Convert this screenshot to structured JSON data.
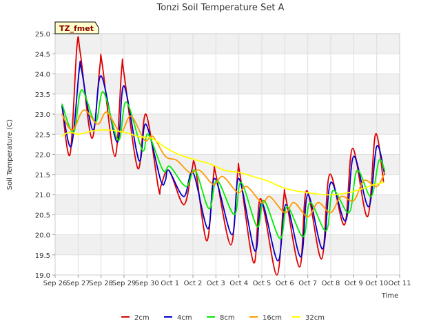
{
  "chart_data": {
    "type": "line",
    "title": "Tonzi Soil Temperature Set A",
    "xlabel": "Time",
    "ylabel": "Soil Temperature (C)",
    "badge": "TZ_fmet",
    "xlim": [
      0,
      15
    ],
    "ylim": [
      19.0,
      25.0
    ],
    "x_ticks": [
      0,
      1,
      2,
      3,
      4,
      5,
      6,
      7,
      8,
      9,
      10,
      11,
      12,
      13,
      14,
      15
    ],
    "x_tick_labels": [
      "Sep 26",
      "Sep 27",
      "Sep 28",
      "Sep 29",
      "Sep 30",
      "Oct 1",
      "Oct 2",
      "Oct 3",
      "Oct 4",
      "Oct 5",
      "Oct 6",
      "Oct 7",
      "Oct 8",
      "Oct 9",
      "Oct 10",
      "Oct 11"
    ],
    "y_ticks": [
      19.0,
      19.5,
      20.0,
      20.5,
      21.0,
      21.5,
      22.0,
      22.5,
      23.0,
      23.5,
      24.0,
      24.5,
      25.0
    ],
    "y_tick_labels": [
      "19.0",
      "19.5",
      "20.0",
      "20.5",
      "21.0",
      "21.5",
      "22.0",
      "22.5",
      "23.0",
      "23.5",
      "24.0",
      "24.5",
      "25.0"
    ],
    "grid": true,
    "legend_position": "bottom",
    "colors": {
      "background_band": "#f0f0f0",
      "grid": "#dddddd",
      "badge_fill": "#ffffcc",
      "badge_text": "#8b0000"
    },
    "series": [
      {
        "name": "2cm",
        "color": "#dd0000",
        "points": [
          [
            0.3,
            23.2
          ],
          [
            0.65,
            22.0
          ],
          [
            0.95,
            24.7
          ],
          [
            1.1,
            24.5
          ],
          [
            1.6,
            22.4
          ],
          [
            1.95,
            24.2
          ],
          [
            2.05,
            24.25
          ],
          [
            2.6,
            21.95
          ],
          [
            2.9,
            24.15
          ],
          [
            3.0,
            24.0
          ],
          [
            3.6,
            21.65
          ],
          [
            3.95,
            23.0
          ],
          [
            4.5,
            21.15
          ],
          [
            4.6,
            21.2
          ],
          [
            4.95,
            21.6
          ],
          [
            5.6,
            20.75
          ],
          [
            5.95,
            21.6
          ],
          [
            6.1,
            21.7
          ],
          [
            6.6,
            19.85
          ],
          [
            6.9,
            21.5
          ],
          [
            7.0,
            21.5
          ],
          [
            7.65,
            19.75
          ],
          [
            7.95,
            21.55
          ],
          [
            8.05,
            21.5
          ],
          [
            8.65,
            19.3
          ],
          [
            8.95,
            20.9
          ],
          [
            9.65,
            19.0
          ],
          [
            9.95,
            20.9
          ],
          [
            10.05,
            20.9
          ],
          [
            10.65,
            19.2
          ],
          [
            10.95,
            21.1
          ],
          [
            11.6,
            19.4
          ],
          [
            11.95,
            21.5
          ],
          [
            12.6,
            20.25
          ],
          [
            12.95,
            22.15
          ],
          [
            13.6,
            20.45
          ],
          [
            13.95,
            22.5
          ],
          [
            14.3,
            21.3
          ]
        ]
      },
      {
        "name": "4cm",
        "color": "#0000cc",
        "points": [
          [
            0.3,
            23.2
          ],
          [
            0.7,
            22.2
          ],
          [
            1.05,
            24.1
          ],
          [
            1.15,
            24.1
          ],
          [
            1.65,
            22.6
          ],
          [
            2.0,
            23.95
          ],
          [
            2.7,
            22.3
          ],
          [
            3.0,
            23.7
          ],
          [
            3.65,
            21.85
          ],
          [
            3.95,
            22.75
          ],
          [
            4.6,
            21.35
          ],
          [
            4.8,
            21.35
          ],
          [
            4.95,
            21.6
          ],
          [
            5.6,
            20.95
          ],
          [
            6.0,
            21.55
          ],
          [
            6.65,
            20.15
          ],
          [
            6.95,
            21.4
          ],
          [
            7.7,
            20.0
          ],
          [
            8.0,
            21.4
          ],
          [
            8.7,
            19.6
          ],
          [
            9.0,
            20.8
          ],
          [
            9.7,
            19.35
          ],
          [
            10.05,
            20.75
          ],
          [
            10.7,
            19.45
          ],
          [
            11.0,
            21.0
          ],
          [
            11.65,
            19.65
          ],
          [
            12.0,
            21.3
          ],
          [
            12.65,
            20.35
          ],
          [
            13.0,
            21.95
          ],
          [
            13.65,
            20.7
          ],
          [
            14.0,
            22.2
          ],
          [
            14.35,
            21.5
          ]
        ]
      },
      {
        "name": "8cm",
        "color": "#00ee00",
        "points": [
          [
            0.3,
            23.25
          ],
          [
            0.8,
            22.55
          ],
          [
            1.15,
            23.6
          ],
          [
            1.75,
            22.8
          ],
          [
            2.1,
            23.55
          ],
          [
            2.75,
            22.35
          ],
          [
            3.1,
            23.3
          ],
          [
            3.8,
            22.1
          ],
          [
            4.05,
            22.5
          ],
          [
            4.7,
            21.6
          ],
          [
            5.0,
            21.7
          ],
          [
            5.7,
            21.2
          ],
          [
            6.1,
            21.6
          ],
          [
            6.7,
            20.65
          ],
          [
            7.05,
            21.35
          ],
          [
            7.8,
            20.5
          ],
          [
            8.1,
            21.3
          ],
          [
            8.8,
            20.2
          ],
          [
            9.1,
            20.85
          ],
          [
            9.8,
            19.9
          ],
          [
            10.1,
            20.7
          ],
          [
            10.8,
            19.95
          ],
          [
            11.1,
            20.8
          ],
          [
            11.8,
            20.1
          ],
          [
            12.1,
            21.1
          ],
          [
            12.8,
            20.55
          ],
          [
            13.15,
            21.6
          ],
          [
            13.75,
            20.95
          ],
          [
            14.1,
            21.85
          ],
          [
            14.35,
            21.6
          ]
        ]
      },
      {
        "name": "16cm",
        "color": "#ff9900",
        "points": [
          [
            0.3,
            23.0
          ],
          [
            0.75,
            22.6
          ],
          [
            1.25,
            23.1
          ],
          [
            1.85,
            22.75
          ],
          [
            2.25,
            23.05
          ],
          [
            2.85,
            22.55
          ],
          [
            3.3,
            22.95
          ],
          [
            3.9,
            22.35
          ],
          [
            4.25,
            22.45
          ],
          [
            4.8,
            21.95
          ],
          [
            5.3,
            21.85
          ],
          [
            5.85,
            21.55
          ],
          [
            6.3,
            21.6
          ],
          [
            6.9,
            21.25
          ],
          [
            7.3,
            21.45
          ],
          [
            7.95,
            21.05
          ],
          [
            8.35,
            21.2
          ],
          [
            9.0,
            20.8
          ],
          [
            9.35,
            20.95
          ],
          [
            10.0,
            20.55
          ],
          [
            10.4,
            20.8
          ],
          [
            11.0,
            20.45
          ],
          [
            11.45,
            20.8
          ],
          [
            12.0,
            20.55
          ],
          [
            12.45,
            20.95
          ],
          [
            13.0,
            20.85
          ],
          [
            13.45,
            21.35
          ],
          [
            14.0,
            21.2
          ],
          [
            14.35,
            21.55
          ]
        ]
      },
      {
        "name": "32cm",
        "color": "#ffff00",
        "points": [
          [
            0.3,
            22.45
          ],
          [
            0.6,
            22.55
          ],
          [
            1.0,
            22.5
          ],
          [
            1.4,
            22.55
          ],
          [
            1.8,
            22.6
          ],
          [
            2.4,
            22.6
          ],
          [
            3.0,
            22.55
          ],
          [
            3.6,
            22.45
          ],
          [
            4.2,
            22.4
          ],
          [
            4.6,
            22.25
          ],
          [
            5.0,
            22.1
          ],
          [
            5.6,
            21.95
          ],
          [
            6.2,
            21.85
          ],
          [
            6.8,
            21.75
          ],
          [
            7.4,
            21.6
          ],
          [
            8.0,
            21.55
          ],
          [
            8.6,
            21.45
          ],
          [
            9.2,
            21.35
          ],
          [
            9.8,
            21.2
          ],
          [
            10.4,
            21.1
          ],
          [
            11.0,
            21.05
          ],
          [
            11.6,
            21.0
          ],
          [
            12.2,
            21.0
          ],
          [
            12.8,
            21.05
          ],
          [
            13.4,
            21.15
          ],
          [
            13.9,
            21.25
          ],
          [
            14.3,
            21.3
          ]
        ]
      }
    ]
  }
}
